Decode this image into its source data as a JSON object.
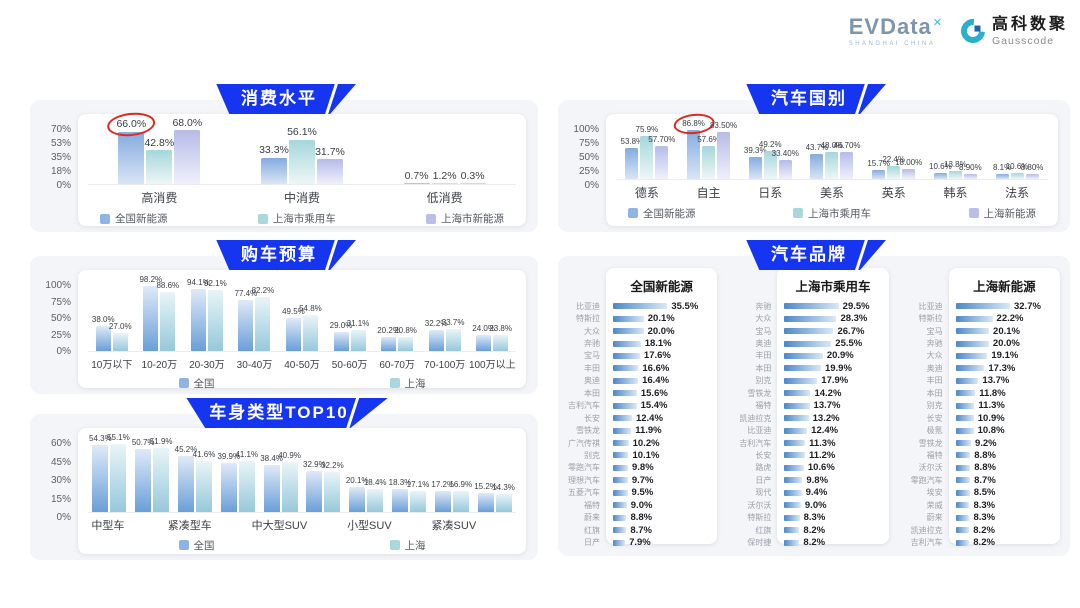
{
  "header": {
    "evdata_logo": "EVData",
    "evdata_mark": "✕",
    "evdata_sub": "SHANGHAI CHINA",
    "gausscode_cn": "高科数聚",
    "gausscode_en": "Gausscode"
  },
  "colors": {
    "banner": "#1535f1",
    "annotation_circle": "#e0281e",
    "legend_swatches": [
      "#8fb4e2",
      "#a8d8db",
      "#babee9"
    ],
    "gradients_top_saturated": [
      [
        "#84abdf",
        "#d9e5f5"
      ],
      [
        "#a4d7db",
        "#eef6f7"
      ],
      [
        "#b6bbe8",
        "#f0f0fb"
      ]
    ],
    "gradients_bottom_saturated": [
      [
        "#dfeaf8",
        "#699fd8"
      ],
      [
        "#e9f5f8",
        "#96c8db"
      ]
    ],
    "brand_bar": [
      "#4d87c8",
      "#d9e9f7"
    ]
  },
  "chart_data": [
    {
      "id": "consumption-level",
      "type": "bar",
      "title": "消费水平",
      "ymax": 70,
      "yticks": [
        "70%",
        "53%",
        "35%",
        "18%",
        "0%"
      ],
      "categories": [
        "高消费",
        "中消费",
        "低消费"
      ],
      "series": [
        {
          "name": "全国新能源",
          "values": [
            66.0,
            33.3,
            0.7
          ],
          "labels": [
            "66.0%",
            "33.3%",
            "0.7%"
          ]
        },
        {
          "name": "上海市乘用车",
          "values": [
            42.8,
            56.1,
            1.2
          ],
          "labels": [
            "42.8%",
            "56.1%",
            "1.2%"
          ]
        },
        {
          "name": "上海市新能源",
          "values": [
            68.0,
            31.7,
            0.3
          ],
          "labels": [
            "68.0%",
            "31.7%",
            "0.3%"
          ]
        }
      ],
      "circled": {
        "series": 0,
        "category": 0,
        "label": "66.0%"
      },
      "legend_position": "bottom"
    },
    {
      "id": "purchase-budget",
      "type": "bar",
      "title": "购车预算",
      "ymax": 100,
      "yticks": [
        "100%",
        "75%",
        "50%",
        "25%",
        "0%"
      ],
      "categories": [
        "10万以下",
        "10-20万",
        "20-30万",
        "30-40万",
        "40-50万",
        "50-60万",
        "60-70万",
        "70-100万",
        "100万以上"
      ],
      "series": [
        {
          "name": "全国",
          "values": [
            38.0,
            98.2,
            94.1,
            77.4,
            49.5,
            29.0,
            20.2,
            32.2,
            24.0
          ],
          "labels": [
            "38.0%",
            "98.2%",
            "94.1%",
            "77.4%",
            "49.5%",
            "29.0%",
            "20.2%",
            "32.2%",
            "24.0%"
          ]
        },
        {
          "name": "上海",
          "values": [
            27.0,
            88.6,
            92.1,
            82.2,
            54.8,
            31.1,
            20.8,
            33.7,
            23.8
          ],
          "labels": [
            "27.0%",
            "88.6%",
            "92.1%",
            "82.2%",
            "54.8%",
            "31.1%",
            "20.8%",
            "33.7%",
            "23.8%"
          ]
        }
      ],
      "legend_position": "bottom"
    },
    {
      "id": "body-type-top10",
      "type": "bar",
      "title": "车身类型TOP10",
      "ymax": 60,
      "yticks": [
        "60%",
        "45%",
        "30%",
        "15%",
        "0%"
      ],
      "categories": [
        "中型车",
        "",
        "紧凑型车",
        "",
        "中大型SUV",
        "",
        "小型SUV",
        "",
        "紧凑SUV",
        ""
      ],
      "series": [
        {
          "name": "全国",
          "values": [
            54.3,
            50.7,
            45.2,
            39.9,
            38.4,
            32.9,
            20.1,
            18.3,
            17.2,
            15.2
          ],
          "labels": [
            "54.3%",
            "50.7%",
            "45.2%",
            "39.9%",
            "38.4%",
            "32.9%",
            "20.1%",
            "18.3%",
            "17.2%",
            "15.2%"
          ]
        },
        {
          "name": "上海",
          "values": [
            55.1,
            51.9,
            41.6,
            41.1,
            40.9,
            32.2,
            18.4,
            17.1,
            16.9,
            14.3
          ],
          "labels": [
            "55.1%",
            "51.9%",
            "41.6%",
            "41.1%",
            "40.9%",
            "32.2%",
            "18.4%",
            "17.1%",
            "16.9%",
            "14.3%"
          ]
        }
      ],
      "legend_position": "bottom"
    },
    {
      "id": "car-country",
      "type": "bar",
      "title": "汽车国别",
      "ymax": 100,
      "yticks": [
        "100%",
        "75%",
        "50%",
        "25%",
        "0%"
      ],
      "categories": [
        "德系",
        "自主",
        "日系",
        "美系",
        "英系",
        "韩系",
        "法系"
      ],
      "series": [
        {
          "name": "全国新能源",
          "values": [
            53.8,
            86.8,
            39.3,
            43.7,
            15.7,
            10.6,
            8.1
          ],
          "labels": [
            "53.8%",
            "86.8%",
            "39.3%",
            "43.7%",
            "15.7%",
            "10.6%",
            "8.1%"
          ]
        },
        {
          "name": "上海市乘用车",
          "values": [
            75.9,
            57.6,
            49.2,
            48.0,
            22.4,
            13.8,
            10.6
          ],
          "labels": [
            "75.9%",
            "57.6%",
            "49.2%",
            "48.0%",
            "22.4%",
            "13.8%",
            "10.6%"
          ]
        },
        {
          "name": "上海新能源",
          "values": [
            57.7,
            83.5,
            33.4,
            46.7,
            18.0,
            8.9,
            8.8
          ],
          "labels": [
            "57.70%",
            "83.50%",
            "33.40%",
            "46.70%",
            "18.00%",
            "8.90%",
            "8.80%"
          ]
        }
      ],
      "circled": {
        "series": 0,
        "category": 1,
        "label": "86.8%"
      },
      "legend_position": "bottom"
    },
    {
      "id": "car-brands",
      "type": "table",
      "title": "汽车品牌",
      "tables": [
        {
          "title": "全国新能源",
          "rows": [
            [
              "比亚迪",
              35.5
            ],
            [
              "特斯拉",
              20.1
            ],
            [
              "大众",
              20.0
            ],
            [
              "奔驰",
              18.1
            ],
            [
              "宝马",
              17.6
            ],
            [
              "丰田",
              16.6
            ],
            [
              "奥迪",
              16.4
            ],
            [
              "本田",
              15.6
            ],
            [
              "吉利汽车",
              15.4
            ],
            [
              "长安",
              12.4
            ],
            [
              "雪铁龙",
              11.9
            ],
            [
              "广汽传祺",
              10.2
            ],
            [
              "别克",
              10.1
            ],
            [
              "零跑汽车",
              9.8
            ],
            [
              "理想汽车",
              9.7
            ],
            [
              "五菱汽车",
              9.5
            ],
            [
              "福特",
              9.0
            ],
            [
              "蔚来",
              8.8
            ],
            [
              "红旗",
              8.7
            ],
            [
              "日产",
              7.9
            ]
          ]
        },
        {
          "title": "上海市乘用车",
          "rows": [
            [
              "奔驰",
              29.5
            ],
            [
              "大众",
              28.3
            ],
            [
              "宝马",
              26.7
            ],
            [
              "奥迪",
              25.5
            ],
            [
              "丰田",
              20.9
            ],
            [
              "本田",
              19.9
            ],
            [
              "别克",
              17.9
            ],
            [
              "雪铁龙",
              14.2
            ],
            [
              "福特",
              13.7
            ],
            [
              "凯迪拉克",
              13.2
            ],
            [
              "比亚迪",
              12.4
            ],
            [
              "吉利汽车",
              11.3
            ],
            [
              "长安",
              11.2
            ],
            [
              "路虎",
              10.6
            ],
            [
              "日产",
              9.8
            ],
            [
              "现代",
              9.4
            ],
            [
              "沃尔沃",
              9.0
            ],
            [
              "特斯拉",
              8.3
            ],
            [
              "红旗",
              8.2
            ],
            [
              "保时捷",
              8.2
            ]
          ]
        },
        {
          "title": "上海新能源",
          "rows": [
            [
              "比亚迪",
              32.7
            ],
            [
              "特斯拉",
              22.2
            ],
            [
              "宝马",
              20.1
            ],
            [
              "奔驰",
              20.0
            ],
            [
              "大众",
              19.1
            ],
            [
              "奥迪",
              17.3
            ],
            [
              "丰田",
              13.7
            ],
            [
              "本田",
              11.8
            ],
            [
              "别克",
              11.3
            ],
            [
              "长安",
              10.9
            ],
            [
              "极氪",
              10.8
            ],
            [
              "雪铁龙",
              9.2
            ],
            [
              "福特",
              8.8
            ],
            [
              "沃尔沃",
              8.8
            ],
            [
              "零跑汽车",
              8.7
            ],
            [
              "埃安",
              8.5
            ],
            [
              "荣威",
              8.3
            ],
            [
              "蔚来",
              8.3
            ],
            [
              "凯迪拉克",
              8.2
            ],
            [
              "吉利汽车",
              8.2
            ]
          ]
        }
      ]
    }
  ]
}
